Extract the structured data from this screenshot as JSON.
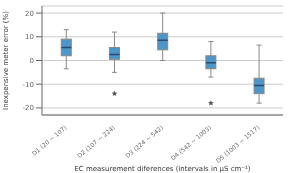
{
  "chart_data": {
    "type": "box",
    "categories": [
      "D1 (20 ~ 107)",
      "D2 (107 ~ 224)",
      "D3 (224 ~ 542)",
      "D4 (542 ~ 1003)",
      "D5 (1003 ~ 1517)"
    ],
    "boxes": [
      {
        "q1": 2.0,
        "median": 5.5,
        "q3": 9.0,
        "whislo": -3.5,
        "whishi": 13.0,
        "fliers": []
      },
      {
        "q1": 0.5,
        "median": 2.5,
        "q3": 5.5,
        "whislo": -5.0,
        "whishi": 12.0,
        "fliers": [
          -14.0
        ]
      },
      {
        "q1": 4.5,
        "median": 8.5,
        "q3": 11.5,
        "whislo": 0.0,
        "whishi": 20.0,
        "fliers": []
      },
      {
        "q1": -3.5,
        "median": -1.0,
        "q3": 2.0,
        "whislo": -7.0,
        "whishi": 8.0,
        "fliers": [
          -18.0
        ]
      },
      {
        "q1": -14.0,
        "median": -10.5,
        "q3": -7.5,
        "whislo": -18.0,
        "whishi": 6.5,
        "fliers": []
      }
    ],
    "color": "#4d96c9",
    "xlabel": "EC measurement diferences (intervals in μS cm⁻¹)",
    "ylabel": "Inexpensive meter error (%)",
    "ylim": [
      -23,
      23
    ],
    "yticks": [
      -20,
      -10,
      0,
      10,
      20
    ],
    "grid": true
  }
}
